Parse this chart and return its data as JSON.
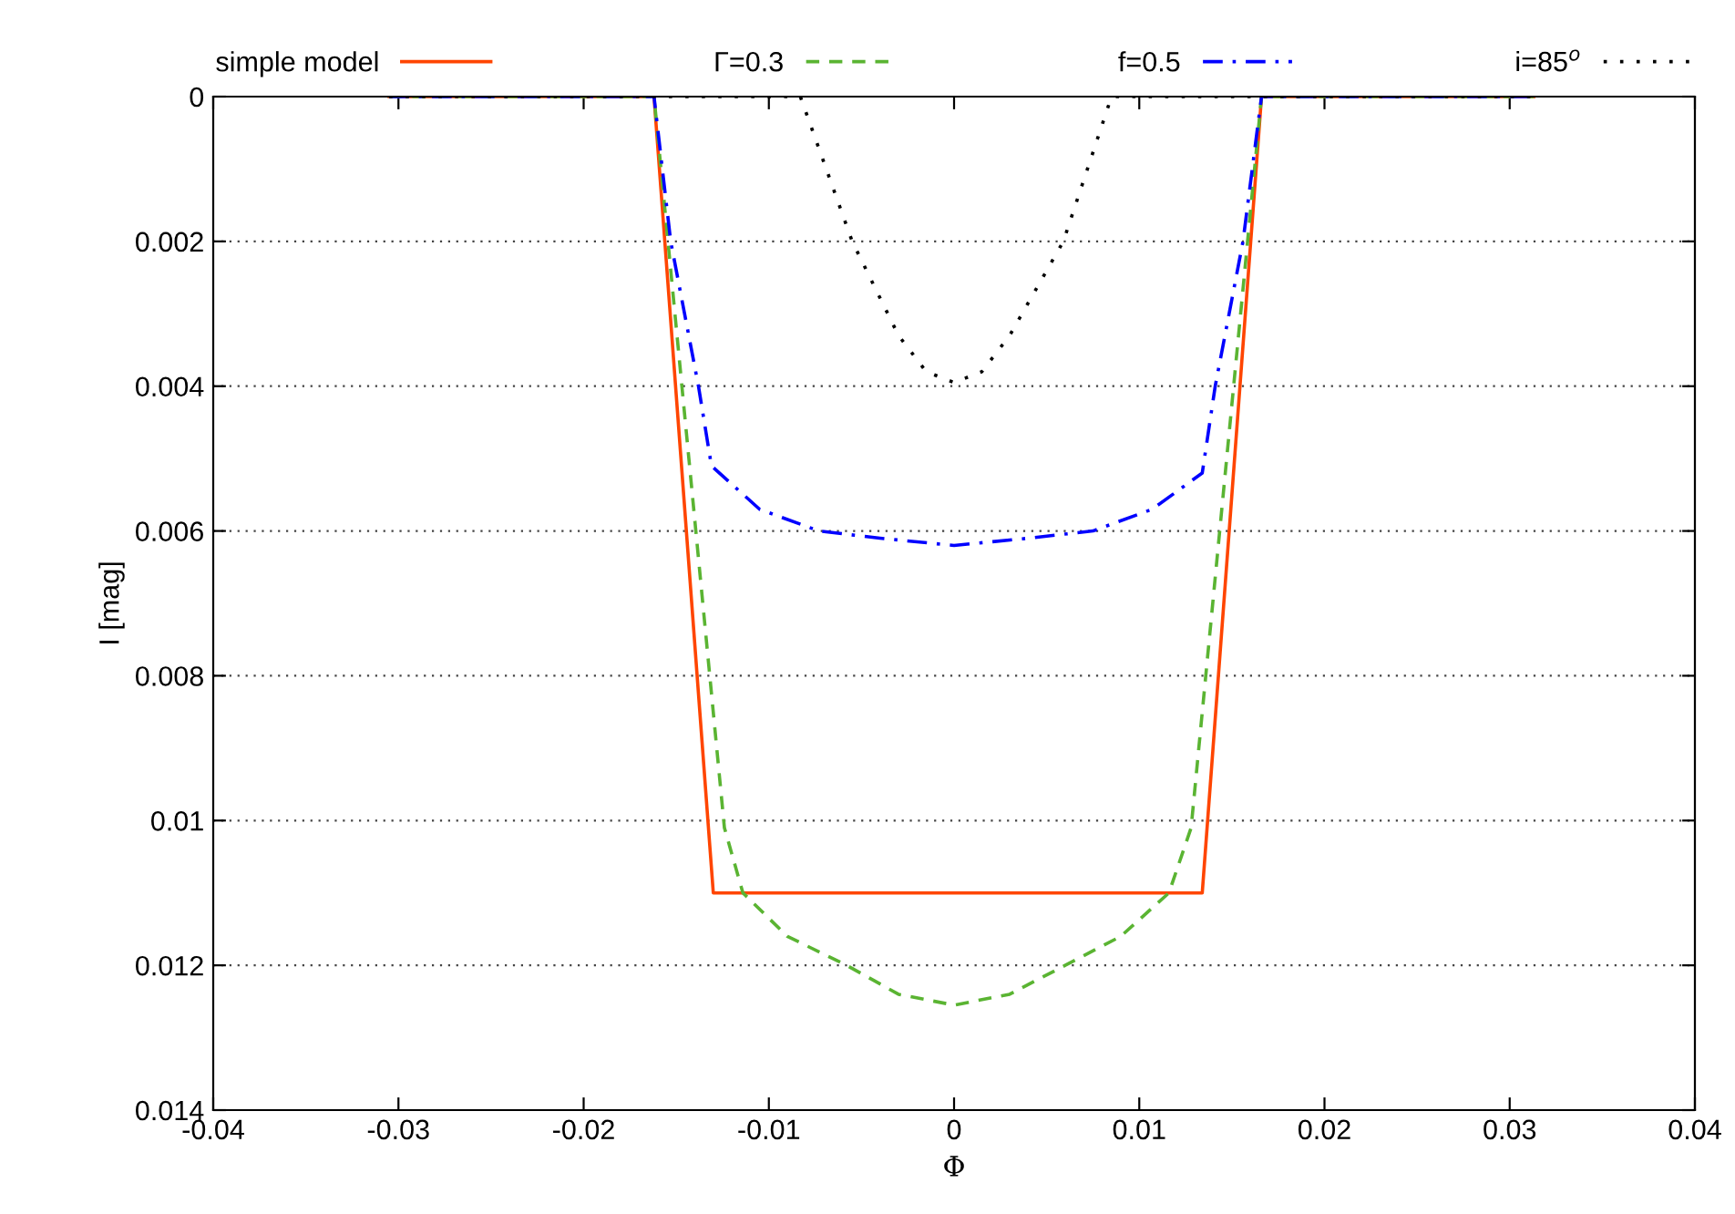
{
  "chart_data": {
    "type": "line",
    "xlabel": "Φ",
    "ylabel": "I [mag]",
    "xlim": [
      -0.04,
      0.04
    ],
    "xticks": [
      -0.04,
      -0.03,
      -0.02,
      -0.01,
      0,
      0.01,
      0.02,
      0.03,
      0.04
    ],
    "ylim": [
      0.014,
      0
    ],
    "yticks": [
      0,
      0.002,
      0.004,
      0.006,
      0.008,
      0.01,
      0.012,
      0.014
    ],
    "grid": "y",
    "legend": "top",
    "marker": "none",
    "series": [
      {
        "name": "simple model",
        "color": "#ff4500",
        "line_style": "solid",
        "x": [
          -0.0305,
          -0.0162,
          -0.013,
          0.0134,
          0.0166,
          0.0313
        ],
        "values": [
          0,
          0,
          0.011,
          0.011,
          0,
          0
        ]
      },
      {
        "name": "Γ=0.3",
        "color": "#5ab432",
        "line_style": "dashed",
        "x": [
          -0.0305,
          -0.0162,
          -0.0124,
          -0.0114,
          -0.009,
          -0.0058,
          -0.003,
          0,
          0.003,
          0.006,
          0.009,
          0.0116,
          0.0128,
          0.0166,
          0.0313
        ],
        "values": [
          0,
          0,
          0.0101,
          0.011,
          0.0116,
          0.012,
          0.0124,
          0.01255,
          0.0124,
          0.012,
          0.0116,
          0.011,
          0.0101,
          0,
          0
        ]
      },
      {
        "name": "f=0.5",
        "color": "#0000ff",
        "line_style": "dashdot",
        "x": [
          -0.0305,
          -0.0162,
          -0.0153,
          -0.0138,
          -0.0131,
          -0.0105,
          -0.0073,
          -0.004,
          0,
          0.004,
          0.0075,
          0.0107,
          0.0134,
          0.0141,
          0.0156,
          0.0166,
          0.0313
        ],
        "values": [
          0,
          0,
          0.002,
          0.004,
          0.0051,
          0.0057,
          0.006,
          0.0061,
          0.0062,
          0.0061,
          0.006,
          0.0057,
          0.0052,
          0.004,
          0.002,
          0,
          0
        ]
      },
      {
        "name": "i=85$^{o}$",
        "color": "#000000",
        "line_style": "dotted",
        "x": [
          -0.0305,
          -0.0083,
          -0.0055,
          -0.003,
          -0.0015,
          0,
          0.0015,
          0.003,
          0.0059,
          0.0085,
          0.0313
        ],
        "values": [
          0,
          0,
          0.002,
          0.0033,
          0.0038,
          0.00395,
          0.0038,
          0.0033,
          0.002,
          0,
          0
        ]
      }
    ]
  }
}
